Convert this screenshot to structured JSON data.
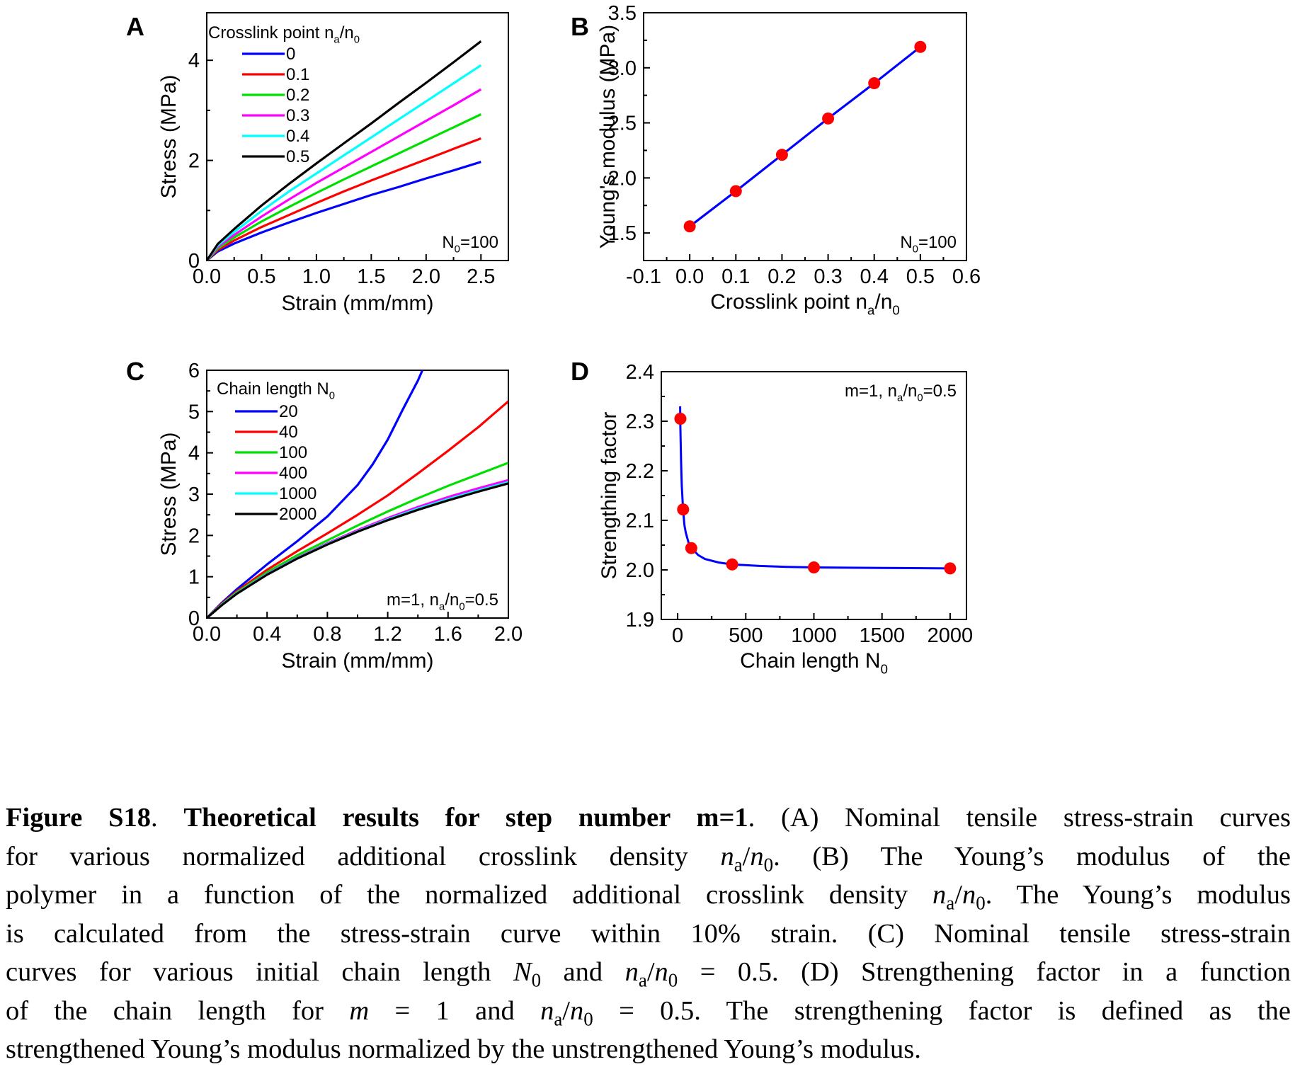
{
  "colors": {
    "blue": "#0000ff",
    "red": "#ff0000",
    "green": "#00e000",
    "magenta": "#ff00ff",
    "cyan": "#00ffff",
    "black": "#000000",
    "marker": "#ff0000"
  },
  "chart_data": [
    {
      "panel": "A",
      "type": "line",
      "xlabel": "Strain (mm/mm)",
      "ylabel": "Stress (MPa)",
      "xlim": [
        0,
        2.75
      ],
      "ylim": [
        0,
        4.95
      ],
      "xticks": [
        0,
        0.5,
        1.0,
        1.5,
        2.0,
        2.5
      ],
      "xtick_labels": [
        "0.0",
        "0.5",
        "1.0",
        "1.5",
        "2.0",
        "2.5"
      ],
      "yticks": [
        0,
        2,
        4
      ],
      "ytick_labels": [
        "0",
        "2",
        "4"
      ],
      "legend_title_parts": [
        "Crosslink point n",
        "a",
        "/n",
        "0"
      ],
      "legend_placement": "top-left",
      "annotation_parts": [
        "N",
        "0",
        "=100"
      ],
      "series": [
        {
          "name": "0",
          "color_key": "blue",
          "x": [
            0,
            0.1,
            0.25,
            0.5,
            0.75,
            1.0,
            1.25,
            1.5,
            1.75,
            2.0,
            2.25,
            2.5
          ],
          "y": [
            0,
            0.18,
            0.34,
            0.56,
            0.76,
            0.95,
            1.13,
            1.31,
            1.47,
            1.64,
            1.8,
            1.97
          ]
        },
        {
          "name": "0.1",
          "color_key": "red",
          "x": [
            0,
            0.1,
            0.25,
            0.5,
            0.75,
            1.0,
            1.25,
            1.5,
            1.75,
            2.0,
            2.25,
            2.5
          ],
          "y": [
            0,
            0.21,
            0.4,
            0.67,
            0.91,
            1.15,
            1.38,
            1.6,
            1.81,
            2.02,
            2.23,
            2.44
          ]
        },
        {
          "name": "0.2",
          "color_key": "green",
          "x": [
            0,
            0.1,
            0.25,
            0.5,
            0.75,
            1.0,
            1.25,
            1.5,
            1.75,
            2.0,
            2.25,
            2.5
          ],
          "y": [
            0,
            0.24,
            0.46,
            0.78,
            1.07,
            1.35,
            1.62,
            1.88,
            2.14,
            2.4,
            2.66,
            2.92
          ]
        },
        {
          "name": "0.3",
          "color_key": "magenta",
          "x": [
            0,
            0.1,
            0.25,
            0.5,
            0.75,
            1.0,
            1.25,
            1.5,
            1.75,
            2.0,
            2.25,
            2.5
          ],
          "y": [
            0,
            0.27,
            0.51,
            0.88,
            1.22,
            1.55,
            1.86,
            2.17,
            2.48,
            2.79,
            3.1,
            3.42
          ]
        },
        {
          "name": "0.4",
          "color_key": "cyan",
          "x": [
            0,
            0.1,
            0.25,
            0.5,
            0.75,
            1.0,
            1.25,
            1.5,
            1.75,
            2.0,
            2.25,
            2.5
          ],
          "y": [
            0,
            0.3,
            0.57,
            0.99,
            1.38,
            1.74,
            2.1,
            2.46,
            2.82,
            3.18,
            3.54,
            3.9
          ]
        },
        {
          "name": "0.5",
          "color_key": "black",
          "x": [
            0,
            0.1,
            0.25,
            0.5,
            0.75,
            1.0,
            1.25,
            1.5,
            1.75,
            2.0,
            2.25,
            2.5
          ],
          "y": [
            0,
            0.33,
            0.63,
            1.1,
            1.53,
            1.94,
            2.34,
            2.74,
            3.15,
            3.55,
            3.96,
            4.38
          ]
        }
      ]
    },
    {
      "panel": "B",
      "type": "line",
      "xlabel_parts": [
        "Crosslink point n",
        "a",
        "/n",
        "0"
      ],
      "ylabel": "Young's modulus (MPa)",
      "xlim": [
        -0.1,
        0.6
      ],
      "ylim": [
        1.25,
        3.5
      ],
      "xticks": [
        -0.1,
        0,
        0.1,
        0.2,
        0.3,
        0.4,
        0.5,
        0.6
      ],
      "xtick_labels": [
        "-0.1",
        "0.0",
        "0.1",
        "0.2",
        "0.3",
        "0.4",
        "0.5",
        "0.6"
      ],
      "yticks": [
        1.5,
        2.0,
        2.5,
        3.0,
        3.5
      ],
      "ytick_labels": [
        "1.5",
        "2.0",
        "2.5",
        "3.0",
        "3.5"
      ],
      "annotation_parts": [
        "N",
        "0",
        "=100"
      ],
      "series": [
        {
          "line_color_key": "blue",
          "marker_color_key": "marker",
          "x": [
            0,
            0.1,
            0.2,
            0.3,
            0.4,
            0.5
          ],
          "y": [
            1.56,
            1.88,
            2.21,
            2.54,
            2.86,
            3.19
          ]
        }
      ]
    },
    {
      "panel": "C",
      "type": "line",
      "xlabel": "Strain (mm/mm)",
      "ylabel": "Stress (MPa)",
      "xlim": [
        0,
        2.0
      ],
      "ylim": [
        0,
        6
      ],
      "xticks": [
        0,
        0.4,
        0.8,
        1.2,
        1.6,
        2.0
      ],
      "xtick_labels": [
        "0.0",
        "0.4",
        "0.8",
        "1.2",
        "1.6",
        "2.0"
      ],
      "yticks": [
        0,
        1,
        2,
        3,
        4,
        5,
        6
      ],
      "ytick_labels": [
        "0",
        "1",
        "2",
        "3",
        "4",
        "5",
        "6"
      ],
      "legend_title_parts": [
        "Chain length N",
        "0"
      ],
      "legend_placement": "top-left",
      "annotation_parts": [
        "m=1, n",
        "a",
        "/n",
        "0",
        "=0.5"
      ],
      "series": [
        {
          "name": "20",
          "color_key": "blue",
          "x": [
            0,
            0.1,
            0.2,
            0.4,
            0.6,
            0.8,
            1.0,
            1.1,
            1.2,
            1.3,
            1.4,
            1.43
          ],
          "y": [
            0,
            0.37,
            0.7,
            1.3,
            1.86,
            2.46,
            3.22,
            3.72,
            4.32,
            5.05,
            5.75,
            6.0
          ]
        },
        {
          "name": "40",
          "color_key": "red",
          "x": [
            0,
            0.1,
            0.2,
            0.4,
            0.6,
            0.8,
            1.0,
            1.2,
            1.4,
            1.6,
            1.8,
            2.0
          ],
          "y": [
            0,
            0.35,
            0.65,
            1.17,
            1.62,
            2.05,
            2.5,
            2.97,
            3.5,
            4.05,
            4.62,
            5.25
          ]
        },
        {
          "name": "100",
          "color_key": "green",
          "x": [
            0,
            0.1,
            0.2,
            0.4,
            0.6,
            0.8,
            1.0,
            1.2,
            1.4,
            1.6,
            1.8,
            2.0
          ],
          "y": [
            0,
            0.33,
            0.62,
            1.11,
            1.52,
            1.88,
            2.24,
            2.58,
            2.9,
            3.2,
            3.48,
            3.76
          ]
        },
        {
          "name": "400",
          "color_key": "magenta",
          "x": [
            0,
            0.1,
            0.2,
            0.4,
            0.6,
            0.8,
            1.0,
            1.2,
            1.4,
            1.6,
            1.8,
            2.0
          ],
          "y": [
            0,
            0.32,
            0.6,
            1.07,
            1.46,
            1.81,
            2.13,
            2.42,
            2.69,
            2.93,
            3.14,
            3.34
          ]
        },
        {
          "name": "1000",
          "color_key": "cyan",
          "x": [
            0,
            0.1,
            0.2,
            0.4,
            0.6,
            0.8,
            1.0,
            1.2,
            1.4,
            1.6,
            1.8,
            2.0
          ],
          "y": [
            0,
            0.32,
            0.6,
            1.06,
            1.45,
            1.79,
            2.1,
            2.39,
            2.65,
            2.88,
            3.09,
            3.29
          ]
        },
        {
          "name": "2000",
          "color_key": "black",
          "x": [
            0,
            0.1,
            0.2,
            0.4,
            0.6,
            0.8,
            1.0,
            1.2,
            1.4,
            1.6,
            1.8,
            2.0
          ],
          "y": [
            0,
            0.31,
            0.59,
            1.05,
            1.44,
            1.78,
            2.09,
            2.37,
            2.62,
            2.85,
            3.06,
            3.26
          ]
        }
      ]
    },
    {
      "panel": "D",
      "type": "line",
      "xlabel_parts": [
        "Chain length N",
        "0"
      ],
      "ylabel": "Strengthing factor",
      "xlim": [
        -120,
        2120
      ],
      "ylim": [
        1.9,
        2.4
      ],
      "xticks": [
        0,
        500,
        1000,
        1500,
        2000
      ],
      "xtick_labels": [
        "0",
        "500",
        "1000",
        "1500",
        "2000"
      ],
      "yticks": [
        1.9,
        2.0,
        2.1,
        2.2,
        2.3,
        2.4
      ],
      "ytick_labels": [
        "1.9",
        "2.0",
        "2.1",
        "2.2",
        "2.3",
        "2.4"
      ],
      "annotation_parts": [
        "m=1, n",
        "a",
        "/n",
        "0",
        "=0.5"
      ],
      "series": [
        {
          "line_color_key": "blue",
          "marker_color_key": "marker",
          "x": [
            20,
            40,
            100,
            400,
            1000,
            2000
          ],
          "y": [
            2.305,
            2.122,
            2.044,
            2.011,
            2.005,
            2.003
          ]
        }
      ],
      "curve": {
        "x": [
          18,
          20,
          25,
          30,
          40,
          50,
          60,
          80,
          100,
          150,
          200,
          300,
          400,
          600,
          800,
          1000,
          1500,
          2000
        ],
        "y": [
          2.33,
          2.29,
          2.22,
          2.17,
          2.12,
          2.09,
          2.075,
          2.055,
          2.045,
          2.03,
          2.022,
          2.015,
          2.011,
          2.008,
          2.006,
          2.005,
          2.004,
          2.003
        ]
      }
    }
  ],
  "caption": {
    "fig_label": "Figure S18",
    "fig_title": "Theoretical results for step number m=1",
    "lines": [
      [
        {
          "t": "b",
          "v": "Figure S18"
        },
        {
          "t": "n",
          "v": ". "
        },
        {
          "t": "b",
          "v": "Theoretical results for step number m=1"
        },
        {
          "t": "n",
          "v": ". (A) Nominal tensile stress-strain curves"
        }
      ],
      [
        {
          "t": "n",
          "v": "for various normalized additional crosslink density "
        },
        {
          "t": "i",
          "v": "n"
        },
        {
          "t": "sub",
          "v": "a"
        },
        {
          "t": "n",
          "v": "/"
        },
        {
          "t": "i",
          "v": "n"
        },
        {
          "t": "sub",
          "v": "0"
        },
        {
          "t": "n",
          "v": ". (B) The Young’s modulus of the"
        }
      ],
      [
        {
          "t": "n",
          "v": "polymer in a function of the normalized additional crosslink density "
        },
        {
          "t": "i",
          "v": "n"
        },
        {
          "t": "sub",
          "v": "a"
        },
        {
          "t": "n",
          "v": "/"
        },
        {
          "t": "i",
          "v": "n"
        },
        {
          "t": "sub",
          "v": "0"
        },
        {
          "t": "n",
          "v": ". The Young’s modulus"
        }
      ],
      [
        {
          "t": "n",
          "v": "is calculated from the stress-strain curve within 10% strain. (C) Nominal tensile stress-strain"
        }
      ],
      [
        {
          "t": "n",
          "v": "curves for various initial chain length "
        },
        {
          "t": "i",
          "v": "N"
        },
        {
          "t": "sub",
          "v": "0"
        },
        {
          "t": "n",
          "v": " and "
        },
        {
          "t": "i",
          "v": "n"
        },
        {
          "t": "sub",
          "v": "a"
        },
        {
          "t": "n",
          "v": "/"
        },
        {
          "t": "i",
          "v": "n"
        },
        {
          "t": "sub",
          "v": "0"
        },
        {
          "t": "n",
          "v": " = 0.5. (D) Strengthening factor in a function"
        }
      ],
      [
        {
          "t": "n",
          "v": "of the chain length for "
        },
        {
          "t": "i",
          "v": "m"
        },
        {
          "t": "n",
          "v": " = 1 and "
        },
        {
          "t": "i",
          "v": "n"
        },
        {
          "t": "sub",
          "v": "a"
        },
        {
          "t": "n",
          "v": "/"
        },
        {
          "t": "i",
          "v": "n"
        },
        {
          "t": "sub",
          "v": "0"
        },
        {
          "t": "n",
          "v": " = 0.5. The strengthening factor is defined as the"
        }
      ],
      [
        {
          "t": "n",
          "v": "strengthened Young’s modulus normalized by the unstrengthened Young’s modulus."
        }
      ]
    ]
  }
}
